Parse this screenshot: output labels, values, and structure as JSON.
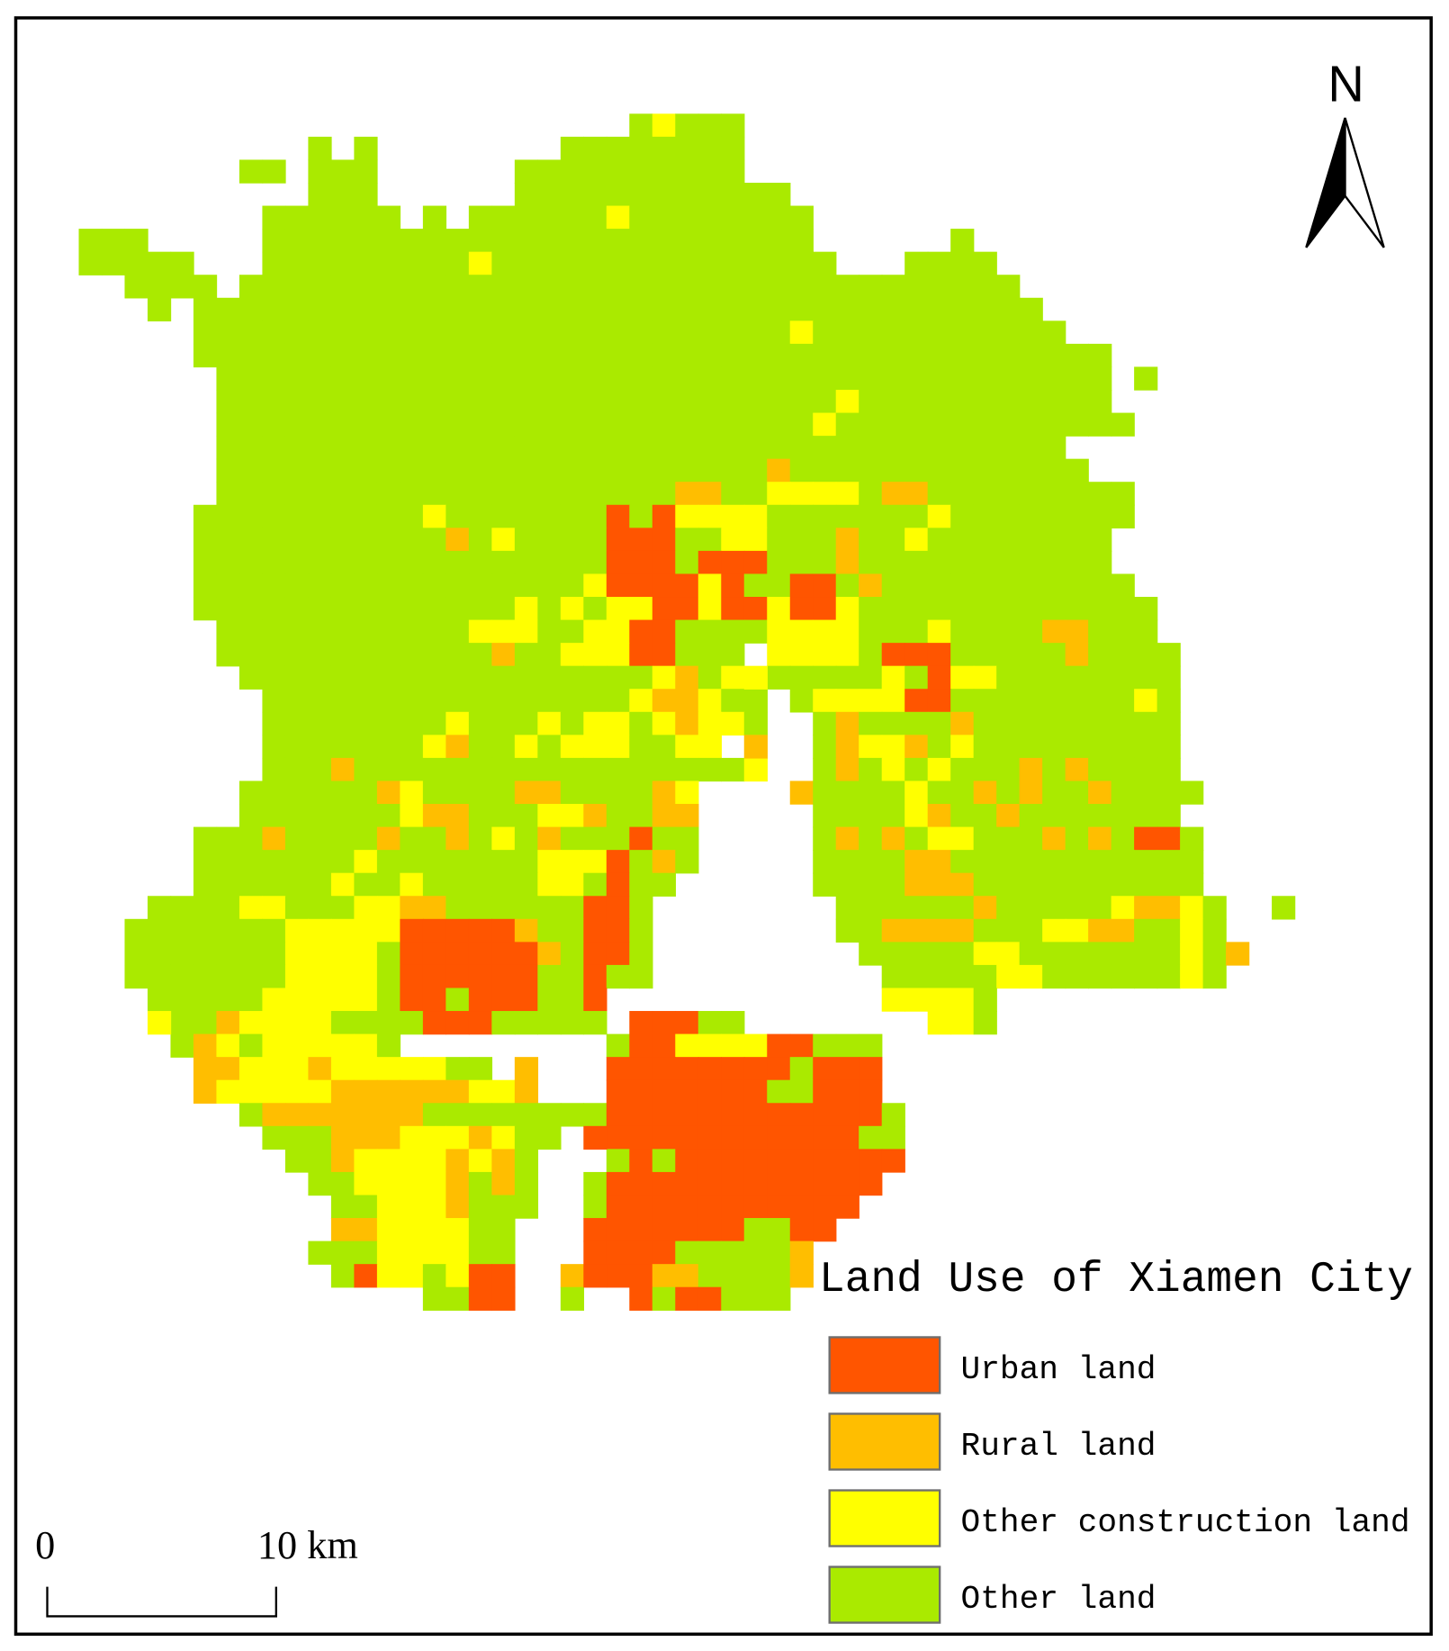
{
  "map": {
    "title": "Land Use of Xiamen City",
    "north": "N",
    "scale_bar": {
      "start": "0",
      "end": "10 km"
    },
    "legend": {
      "items": [
        {
          "label": "Urban land",
          "color": "#ff5500"
        },
        {
          "label": "Rural land",
          "color": "#ffbe00"
        },
        {
          "label": "Other construction land",
          "color": "#ffff00"
        },
        {
          "label": "Other land",
          "color": "#aaea00"
        }
      ]
    }
  }
}
